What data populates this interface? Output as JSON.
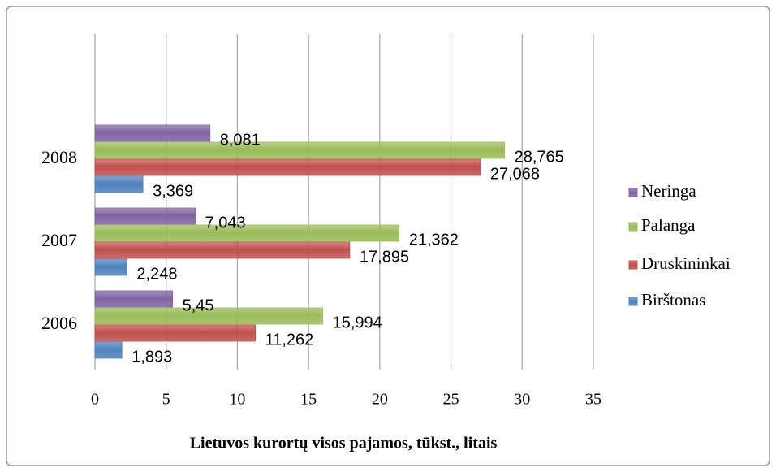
{
  "chart_data": {
    "type": "bar",
    "orientation": "horizontal",
    "xlabel": "Lietuvos kurortų visos pajamos, tūkst., litais",
    "categories": [
      "2006",
      "2007",
      "2008"
    ],
    "series": [
      {
        "name": "Birštonas",
        "color": "#4f81bd",
        "values": [
          1.893,
          2.248,
          3.369
        ],
        "value_labels": [
          "1,893",
          "2,248",
          "3,369"
        ]
      },
      {
        "name": "Druskininkai",
        "color": "#c0504d",
        "values": [
          11.262,
          17.895,
          27.068
        ],
        "value_labels": [
          "11,262",
          "17,895",
          "27,068"
        ]
      },
      {
        "name": "Palanga",
        "color": "#9bbb59",
        "values": [
          15.994,
          21.362,
          28.765
        ],
        "value_labels": [
          "15,994",
          "21,362",
          "28,765"
        ]
      },
      {
        "name": "Neringa",
        "color": "#8064a2",
        "values": [
          5.45,
          7.043,
          8.081
        ],
        "value_labels": [
          "5,45",
          "7,043",
          "8,081"
        ]
      }
    ],
    "xlim": [
      0,
      35
    ],
    "xticks": [
      0,
      5,
      10,
      15,
      20,
      25,
      30,
      35
    ],
    "grid": true,
    "legend": "right"
  }
}
